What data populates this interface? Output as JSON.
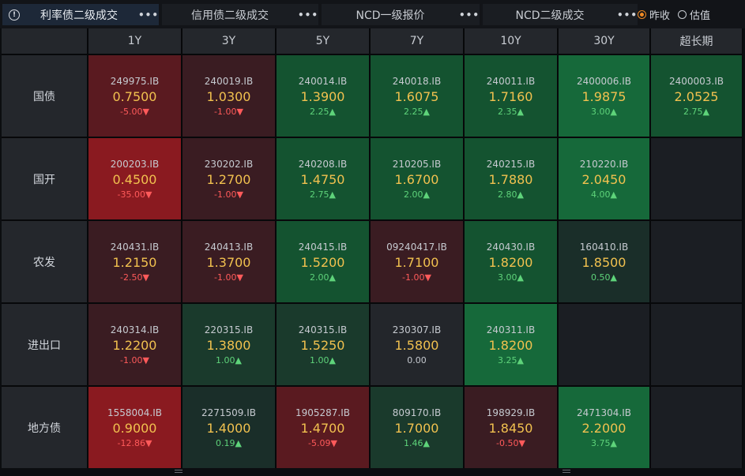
{
  "tabs": [
    {
      "label": "利率债二级成交",
      "more": "•••",
      "active": true
    },
    {
      "label": "信用债二级成交",
      "more": "•••",
      "active": false
    },
    {
      "label": "NCD一级报价",
      "more": "•••",
      "active": false
    },
    {
      "label": "NCD二级成交",
      "more": "•••",
      "active": false
    }
  ],
  "info_glyph": "!",
  "radios": [
    {
      "label": "昨收",
      "checked": true
    },
    {
      "label": "估值",
      "checked": false
    }
  ],
  "columns": [
    "1Y",
    "3Y",
    "5Y",
    "7Y",
    "10Y",
    "30Y",
    "超长期"
  ],
  "rows": [
    {
      "label": "国债",
      "cells": [
        {
          "code": "249975.IB",
          "price": "0.7500",
          "change": "-5.00▼",
          "dir": "dn",
          "shade": "r2"
        },
        {
          "code": "240019.IB",
          "price": "1.0300",
          "change": "-1.00▼",
          "dir": "dn",
          "shade": "r3"
        },
        {
          "code": "240014.IB",
          "price": "1.3900",
          "change": "2.25▲",
          "dir": "up",
          "shade": "g2"
        },
        {
          "code": "240018.IB",
          "price": "1.6075",
          "change": "2.25▲",
          "dir": "up",
          "shade": "g2"
        },
        {
          "code": "240011.IB",
          "price": "1.7160",
          "change": "2.35▲",
          "dir": "up",
          "shade": "g2"
        },
        {
          "code": "2400006.IB",
          "price": "1.9875",
          "change": "3.00▲",
          "dir": "up",
          "shade": "g1"
        },
        {
          "code": "2400003.IB",
          "price": "2.0525",
          "change": "2.75▲",
          "dir": "up",
          "shade": "g2"
        }
      ]
    },
    {
      "label": "国开",
      "cells": [
        {
          "code": "200203.IB",
          "price": "0.4500",
          "change": "-35.00▼",
          "dir": "dn",
          "shade": "r1"
        },
        {
          "code": "230202.IB",
          "price": "1.2700",
          "change": "-1.00▼",
          "dir": "dn",
          "shade": "r3"
        },
        {
          "code": "240208.IB",
          "price": "1.4750",
          "change": "2.75▲",
          "dir": "up",
          "shade": "g2"
        },
        {
          "code": "210205.IB",
          "price": "1.6700",
          "change": "2.00▲",
          "dir": "up",
          "shade": "g2"
        },
        {
          "code": "240215.IB",
          "price": "1.7880",
          "change": "2.80▲",
          "dir": "up",
          "shade": "g2"
        },
        {
          "code": "210220.IB",
          "price": "2.0450",
          "change": "4.00▲",
          "dir": "up",
          "shade": "g1"
        },
        null
      ]
    },
    {
      "label": "农发",
      "cells": [
        {
          "code": "240431.IB",
          "price": "1.2150",
          "change": "-2.50▼",
          "dir": "dn",
          "shade": "r3"
        },
        {
          "code": "240413.IB",
          "price": "1.3700",
          "change": "-1.00▼",
          "dir": "dn",
          "shade": "r3"
        },
        {
          "code": "240415.IB",
          "price": "1.5200",
          "change": "2.00▲",
          "dir": "up",
          "shade": "g2"
        },
        {
          "code": "09240417.IB",
          "price": "1.7100",
          "change": "-1.00▼",
          "dir": "dn",
          "shade": "r3"
        },
        {
          "code": "240430.IB",
          "price": "1.8200",
          "change": "3.00▲",
          "dir": "up",
          "shade": "g2"
        },
        {
          "code": "160410.IB",
          "price": "1.8500",
          "change": "0.50▲",
          "dir": "up",
          "shade": "g4"
        },
        null
      ]
    },
    {
      "label": "进出口",
      "cells": [
        {
          "code": "240314.IB",
          "price": "1.2200",
          "change": "-1.00▼",
          "dir": "dn",
          "shade": "r3"
        },
        {
          "code": "220315.IB",
          "price": "1.3800",
          "change": "1.00▲",
          "dir": "up",
          "shade": "g3"
        },
        {
          "code": "240315.IB",
          "price": "1.5250",
          "change": "1.00▲",
          "dir": "up",
          "shade": "g3"
        },
        {
          "code": "230307.IB",
          "price": "1.5800",
          "change": "0.00",
          "dir": "flat",
          "shade": "nu"
        },
        {
          "code": "240311.IB",
          "price": "1.8200",
          "change": "3.25▲",
          "dir": "up",
          "shade": "g1"
        },
        null,
        null
      ]
    },
    {
      "label": "地方债",
      "cells": [
        {
          "code": "1558004.IB",
          "price": "0.9000",
          "change": "-12.86▼",
          "dir": "dn",
          "shade": "r1"
        },
        {
          "code": "2271509.IB",
          "price": "1.4000",
          "change": "0.19▲",
          "dir": "up",
          "shade": "g4"
        },
        {
          "code": "1905287.IB",
          "price": "1.4700",
          "change": "-5.09▼",
          "dir": "dn",
          "shade": "r2"
        },
        {
          "code": "809170.IB",
          "price": "1.7000",
          "change": "1.46▲",
          "dir": "up",
          "shade": "g3"
        },
        {
          "code": "198929.IB",
          "price": "1.8450",
          "change": "-0.50▼",
          "dir": "dn",
          "shade": "r3"
        },
        {
          "code": "2471304.IB",
          "price": "2.2000",
          "change": "3.75▲",
          "dir": "up",
          "shade": "g1"
        },
        null
      ]
    }
  ],
  "colors": {
    "price": "#f1c14f",
    "up": "#5ed37a",
    "down": "#ff5a5a",
    "accent": "#f08a24"
  }
}
